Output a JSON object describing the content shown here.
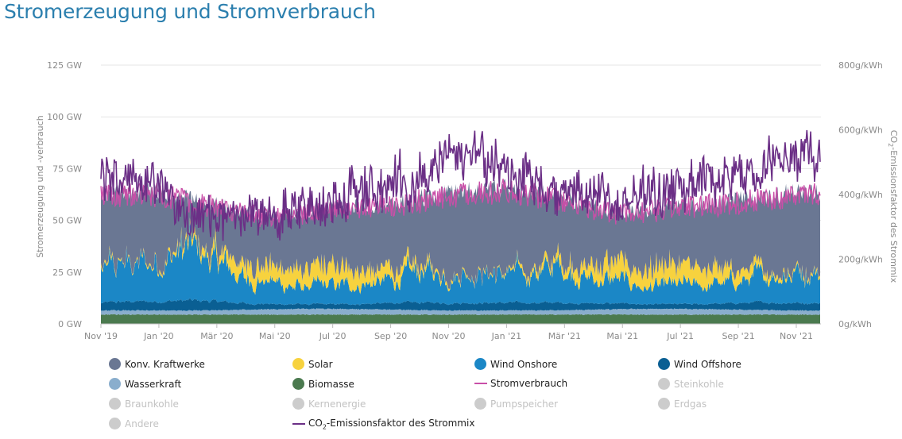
{
  "page": {
    "title": "Stromerzeugung und Stromverbrauch"
  },
  "chart_data": {
    "type": "area",
    "title": "Stromerzeugung und Stromverbrauch",
    "ylabel": "Stromerzeugung und -verbrauch",
    "y2label_parts": [
      "CO",
      "2",
      "-Emissionsfaktor des Strommix"
    ],
    "ylim": [
      0,
      125
    ],
    "y2lim": [
      0,
      800
    ],
    "yticks": [
      {
        "value": 0,
        "label": "0 GW"
      },
      {
        "value": 25,
        "label": "25 GW"
      },
      {
        "value": 50,
        "label": "50 GW"
      },
      {
        "value": 75,
        "label": "75 GW"
      },
      {
        "value": 100,
        "label": "100 GW"
      },
      {
        "value": 125,
        "label": "125 GW"
      }
    ],
    "y2ticks": [
      {
        "value": 0,
        "label": "0g/kWh"
      },
      {
        "value": 200,
        "label": "200g/kWh"
      },
      {
        "value": 400,
        "label": "400g/kWh"
      },
      {
        "value": 600,
        "label": "600g/kWh"
      },
      {
        "value": 800,
        "label": "800g/kWh"
      }
    ],
    "xticks": [
      {
        "month": 0,
        "label": "Nov '19"
      },
      {
        "month": 2,
        "label": "Jan '20"
      },
      {
        "month": 4,
        "label": "Mär '20"
      },
      {
        "month": 6,
        "label": "Mai '20"
      },
      {
        "month": 8,
        "label": "Jul '20"
      },
      {
        "month": 10,
        "label": "Sep '20"
      },
      {
        "month": 12,
        "label": "Nov '20"
      },
      {
        "month": 14,
        "label": "Jan '21"
      },
      {
        "month": 16,
        "label": "Mär '21"
      },
      {
        "month": 18,
        "label": "Mai '21"
      },
      {
        "month": 20,
        "label": "Jul '21"
      },
      {
        "month": 22,
        "label": "Sep '21"
      },
      {
        "month": 24,
        "label": "Nov '21"
      }
    ],
    "x": [
      "Nov '19",
      "Dez '19",
      "Jan '20",
      "Feb '20",
      "Mär '20",
      "Apr '20",
      "Mai '20",
      "Jun '20",
      "Jul '20",
      "Aug '20",
      "Sep '20",
      "Okt '20",
      "Nov '20",
      "Dez '20",
      "Jan '21",
      "Feb '21",
      "Mär '21",
      "Apr '21",
      "Mai '21",
      "Jun '21",
      "Jul '21",
      "Aug '21",
      "Sep '21",
      "Okt '21",
      "Nov '21"
    ],
    "series": [
      {
        "key": "biomasse",
        "name": "Biomasse",
        "color": "#4b7a4f",
        "values": [
          4.5,
          4.5,
          4.5,
          4.5,
          4.5,
          4.5,
          4.5,
          4.5,
          4.5,
          4.5,
          4.5,
          4.5,
          4.5,
          4.5,
          4.5,
          4.5,
          4.5,
          4.5,
          4.5,
          4.5,
          4.5,
          4.5,
          4.5,
          4.5,
          4.5
        ]
      },
      {
        "key": "wasserkraft",
        "name": "Wasserkraft",
        "color": "#8aaecd",
        "values": [
          2.0,
          2.0,
          2.0,
          2.0,
          2.1,
          2.3,
          2.6,
          2.8,
          2.8,
          2.6,
          2.4,
          2.2,
          2.0,
          2.0,
          2.0,
          2.0,
          2.1,
          2.3,
          2.6,
          2.8,
          2.8,
          2.6,
          2.4,
          2.2,
          2.0
        ]
      },
      {
        "key": "offshore",
        "name": "Wind Offshore",
        "color": "#0a5f93",
        "values": [
          3.0,
          3.5,
          3.5,
          4.0,
          3.5,
          2.5,
          2.0,
          1.8,
          1.8,
          2.0,
          2.5,
          3.0,
          3.0,
          3.0,
          3.0,
          3.0,
          3.0,
          2.5,
          2.2,
          1.8,
          1.8,
          2.0,
          2.5,
          3.0,
          3.0
        ]
      },
      {
        "key": "onshore",
        "name": "Wind Onshore",
        "color": "#1b87c6",
        "values": [
          14,
          16,
          17,
          22,
          17,
          10,
          9,
          7,
          8,
          8,
          9,
          13,
          12,
          13,
          12,
          13,
          15,
          10,
          10,
          7,
          8,
          8,
          9,
          11,
          13
        ]
      },
      {
        "key": "solar",
        "name": "Solar",
        "color": "#f7d23e",
        "values": [
          1.5,
          0.8,
          1.2,
          2.5,
          5,
          8,
          9,
          10,
          10,
          9,
          7,
          3.5,
          1.5,
          0.8,
          1.0,
          2.5,
          5,
          8,
          9,
          10,
          10,
          9,
          7,
          3.5,
          1.5
        ]
      },
      {
        "key": "konv",
        "name": "Konv. Kraftwerke",
        "color": "#6a7793",
        "values": [
          36,
          36,
          34,
          28,
          27,
          27,
          26,
          27,
          28,
          29,
          31,
          32,
          35,
          37,
          37,
          35,
          30,
          30,
          29,
          30,
          31,
          33,
          34,
          36,
          36
        ]
      }
    ],
    "verbrauch": {
      "name": "Stromverbrauch",
      "color": "#c94fa8",
      "values": [
        62,
        63,
        62,
        59,
        56,
        53,
        51,
        53,
        55,
        55,
        57,
        59,
        62,
        63,
        64,
        62,
        60,
        56,
        53,
        54,
        56,
        57,
        58,
        60,
        62
      ]
    },
    "co2": {
      "name": "CO2-Emissionsfaktor des Strommix",
      "color": "#6b2f86",
      "values": [
        470,
        450,
        420,
        330,
        320,
        340,
        330,
        360,
        390,
        410,
        430,
        450,
        500,
        520,
        480,
        440,
        400,
        400,
        380,
        420,
        430,
        450,
        460,
        480,
        520
      ],
      "peak": 620
    }
  },
  "legend": [
    {
      "key": "konv",
      "label": "Konv. Kraftwerke",
      "color": "#6a7793",
      "shape": "dot",
      "active": true
    },
    {
      "key": "solar",
      "label": "Solar",
      "color": "#f7d23e",
      "shape": "dot",
      "active": true
    },
    {
      "key": "onshore",
      "label": "Wind Onshore",
      "color": "#1b87c6",
      "shape": "dot",
      "active": true
    },
    {
      "key": "offshore",
      "label": "Wind Offshore",
      "color": "#0a5f93",
      "shape": "dot",
      "active": true
    },
    {
      "key": "wasserkraft",
      "label": "Wasserkraft",
      "color": "#8aaecd",
      "shape": "dot",
      "active": true
    },
    {
      "key": "biomasse",
      "label": "Biomasse",
      "color": "#4b7a4f",
      "shape": "dot",
      "active": true
    },
    {
      "key": "verbrauch",
      "label": "Stromverbrauch",
      "color": "#c94fa8",
      "shape": "line",
      "active": true
    },
    {
      "key": "steinkohle",
      "label": "Steinkohle",
      "color": "#cccccc",
      "shape": "dot",
      "active": false
    },
    {
      "key": "braunkohle",
      "label": "Braunkohle",
      "color": "#cccccc",
      "shape": "dot",
      "active": false
    },
    {
      "key": "kernenergie",
      "label": "Kernenergie",
      "color": "#cccccc",
      "shape": "dot",
      "active": false
    },
    {
      "key": "pumpspeicher",
      "label": "Pumpspeicher",
      "color": "#cccccc",
      "shape": "dot",
      "active": false
    },
    {
      "key": "erdgas",
      "label": "Erdgas",
      "color": "#cccccc",
      "shape": "dot",
      "active": false
    },
    {
      "key": "andere",
      "label": "Andere",
      "color": "#cccccc",
      "shape": "dot",
      "active": false
    },
    {
      "key": "co2",
      "label_parts": [
        "CO",
        "2",
        "-Emissionsfaktor des Strommix"
      ],
      "color": "#6b2f86",
      "shape": "line",
      "active": true
    }
  ]
}
